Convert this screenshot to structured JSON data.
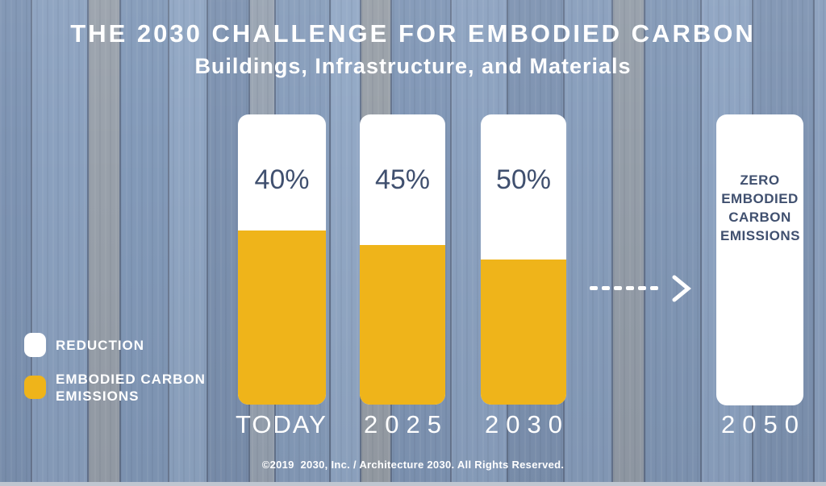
{
  "title": "THE 2030 CHALLENGE FOR EMBODIED CARBON",
  "subtitle": "Buildings, Infrastructure, and Materials",
  "footer": "©2019  2030, Inc. / Architecture 2030. All Rights Reserved.",
  "legend": {
    "items": [
      {
        "label": "REDUCTION",
        "color": "#ffffff"
      },
      {
        "label": "EMBODIED CARBON EMISSIONS",
        "color": "#efb41a"
      }
    ]
  },
  "bars": [
    {
      "category": "TODAY",
      "label": "40%",
      "reduction_pct": 40,
      "emissions_pct": 60
    },
    {
      "category": "2025",
      "label": "45%",
      "reduction_pct": 45,
      "emissions_pct": 55
    },
    {
      "category": "2030",
      "label": "50%",
      "reduction_pct": 50,
      "emissions_pct": 50
    },
    {
      "category": "2050",
      "label": "ZERO EMBODIED CARBON EMISSIONS",
      "reduction_pct": 100,
      "emissions_pct": 0
    }
  ],
  "colors": {
    "accent_yellow": "#efb41a",
    "navy_text": "#40506f",
    "wood_blue": "#8299b7",
    "white": "#ffffff"
  },
  "chart_data": {
    "type": "bar",
    "title": "THE 2030 CHALLENGE FOR EMBODIED CARBON",
    "subtitle": "Buildings, Infrastructure, and Materials",
    "categories": [
      "TODAY",
      "2025",
      "2030",
      "2050"
    ],
    "series": [
      {
        "name": "REDUCTION",
        "color": "#ffffff",
        "values": [
          40,
          45,
          50,
          100
        ]
      },
      {
        "name": "EMBODIED CARBON EMISSIONS",
        "color": "#efb41a",
        "values": [
          60,
          55,
          50,
          0
        ]
      }
    ],
    "bar_value_labels": [
      "40%",
      "45%",
      "50%",
      "ZERO EMBODIED CARBON EMISSIONS"
    ],
    "ylim": [
      0,
      100
    ],
    "grid": false,
    "legend_position": "bottom-left",
    "annotation": "dashed white arrow pointing right from 2030 bar toward 2050 bar",
    "footnote": "©2019  2030, Inc. / Architecture 2030. All Rights Reserved."
  }
}
